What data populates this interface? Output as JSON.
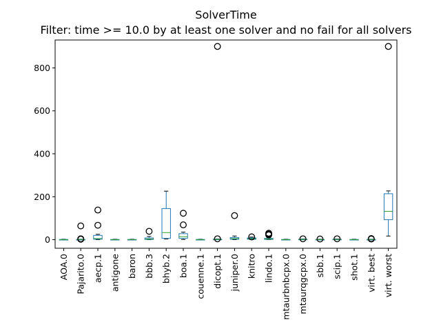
{
  "chart_data": {
    "type": "box",
    "title": "SolverTime",
    "subtitle": "Filter: time >= 10.0 by at least one solver and no fail for all solvers",
    "xlabel": "",
    "ylabel": "",
    "ylim": [
      -40,
      930
    ],
    "yticks": [
      0,
      200,
      400,
      600,
      800
    ],
    "grid": false,
    "colors": {
      "box": "#1f77b4",
      "median": "#2ca02c",
      "outlier": "#000000"
    },
    "categories": [
      "AOA.0",
      "Pajarito.0",
      "aecp.1",
      "antigone",
      "baron",
      "bbb.3",
      "bhyb.2",
      "boa.1",
      "couenne.1",
      "dicopt.1",
      "juniper.0",
      "knitro",
      "lindo.1",
      "mtaurbnbcpx.0",
      "mtaurqgcpx.0",
      "sbb.1",
      "scip.1",
      "shot.1",
      "virt. best",
      "virt. worst"
    ],
    "boxes": [
      {
        "whislo": 0,
        "q1": 0,
        "med": 0,
        "q3": 1,
        "whishi": 2,
        "fliers": []
      },
      {
        "whislo": 0,
        "q1": 0,
        "med": 0.5,
        "q3": 1,
        "whishi": 2,
        "fliers": [
          2,
          4,
          64
        ]
      },
      {
        "whislo": 0,
        "q1": 2,
        "med": 5,
        "q3": 20,
        "whishi": 25,
        "fliers": [
          67,
          138
        ]
      },
      {
        "whislo": 0,
        "q1": 0,
        "med": 0,
        "q3": 1,
        "whishi": 2,
        "fliers": []
      },
      {
        "whislo": 0,
        "q1": 0,
        "med": 0,
        "q3": 1,
        "whishi": 2,
        "fliers": []
      },
      {
        "whislo": 0,
        "q1": 1,
        "med": 3,
        "q3": 8,
        "whishi": 15,
        "fliers": [
          39
        ]
      },
      {
        "whislo": 3,
        "q1": 6,
        "med": 33,
        "q3": 145,
        "whishi": 226,
        "fliers": []
      },
      {
        "whislo": 1,
        "q1": 6,
        "med": 14,
        "q3": 28,
        "whishi": 35,
        "fliers": [
          69,
          123
        ]
      },
      {
        "whislo": 0,
        "q1": 0,
        "med": 0,
        "q3": 1,
        "whishi": 2,
        "fliers": []
      },
      {
        "whislo": 0,
        "q1": 0,
        "med": 1,
        "q3": 2,
        "whishi": 3,
        "fliers": [
          4,
          900
        ]
      },
      {
        "whislo": 0,
        "q1": 2,
        "med": 5,
        "q3": 10,
        "whishi": 17,
        "fliers": [
          112
        ]
      },
      {
        "whislo": 0,
        "q1": 2,
        "med": 5,
        "q3": 8,
        "whishi": 12,
        "fliers": [
          13
        ]
      },
      {
        "whislo": 0,
        "q1": 1,
        "med": 3,
        "q3": 6,
        "whishi": 10,
        "fliers": [
          22,
          26,
          30
        ]
      },
      {
        "whislo": 0,
        "q1": 0,
        "med": 0,
        "q3": 1,
        "whishi": 2,
        "fliers": []
      },
      {
        "whislo": 0,
        "q1": 0,
        "med": 1,
        "q3": 2,
        "whishi": 3,
        "fliers": [
          4
        ]
      },
      {
        "whislo": 0,
        "q1": 0,
        "med": 0,
        "q3": 1,
        "whishi": 2,
        "fliers": [
          3
        ]
      },
      {
        "whislo": 0,
        "q1": 0,
        "med": 1,
        "q3": 2,
        "whishi": 3,
        "fliers": [
          4
        ]
      },
      {
        "whislo": 0,
        "q1": 0,
        "med": 0,
        "q3": 1,
        "whishi": 2,
        "fliers": []
      },
      {
        "whislo": 0,
        "q1": 0,
        "med": 0.5,
        "q3": 1,
        "whishi": 2,
        "fliers": [
          3,
          5
        ]
      },
      {
        "whislo": 17,
        "q1": 93,
        "med": 132,
        "q3": 214,
        "whishi": 227,
        "fliers": [
          900
        ]
      }
    ]
  }
}
